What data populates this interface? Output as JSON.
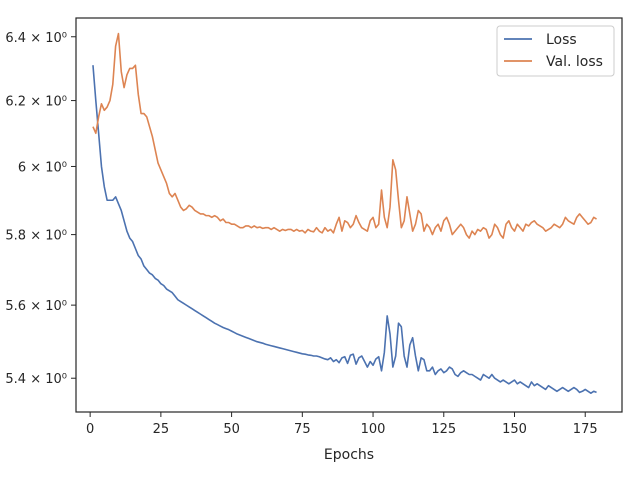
{
  "chart_data": {
    "type": "line",
    "title": "",
    "xlabel": "Epochs",
    "ylabel": "",
    "yscale": "log",
    "xlim": [
      -5,
      188
    ],
    "ylim": [
      5.31,
      6.46
    ],
    "xticks": [
      0,
      25,
      50,
      75,
      100,
      125,
      150,
      175
    ],
    "yticks": [
      5.4,
      5.6,
      5.8,
      6.0,
      6.2,
      6.4
    ],
    "ytick_labels": [
      "5.4 × 10⁰",
      "5.6 × 10⁰",
      "5.8 × 10⁰",
      "6 × 10⁰",
      "6.2 × 10⁰",
      "6.4 × 10⁰"
    ],
    "grid": false,
    "legend": "top-right",
    "x": [
      1,
      2,
      3,
      4,
      5,
      6,
      7,
      8,
      9,
      10,
      11,
      12,
      13,
      14,
      15,
      16,
      17,
      18,
      19,
      20,
      21,
      22,
      23,
      24,
      25,
      26,
      27,
      28,
      29,
      30,
      31,
      32,
      33,
      34,
      35,
      36,
      37,
      38,
      39,
      40,
      41,
      42,
      43,
      44,
      45,
      46,
      47,
      48,
      49,
      50,
      51,
      52,
      53,
      54,
      55,
      56,
      57,
      58,
      59,
      60,
      61,
      62,
      63,
      64,
      65,
      66,
      67,
      68,
      69,
      70,
      71,
      72,
      73,
      74,
      75,
      76,
      77,
      78,
      79,
      80,
      81,
      82,
      83,
      84,
      85,
      86,
      87,
      88,
      89,
      90,
      91,
      92,
      93,
      94,
      95,
      96,
      97,
      98,
      99,
      100,
      101,
      102,
      103,
      104,
      105,
      106,
      107,
      108,
      109,
      110,
      111,
      112,
      113,
      114,
      115,
      116,
      117,
      118,
      119,
      120,
      121,
      122,
      123,
      124,
      125,
      126,
      127,
      128,
      129,
      130,
      131,
      132,
      133,
      134,
      135,
      136,
      137,
      138,
      139,
      140,
      141,
      142,
      143,
      144,
      145,
      146,
      147,
      148,
      149,
      150,
      151,
      152,
      153,
      154,
      155,
      156,
      157,
      158,
      159,
      160,
      161,
      162,
      163,
      164,
      165,
      166,
      167,
      168,
      169,
      170,
      171,
      172,
      173,
      174,
      175,
      176,
      177,
      178,
      179
    ],
    "series": [
      {
        "name": "Loss",
        "color": "#4c72b0",
        "values": [
          6.31,
          6.2,
          6.1,
          6.0,
          5.94,
          5.9,
          5.9,
          5.9,
          5.91,
          5.89,
          5.87,
          5.84,
          5.81,
          5.79,
          5.78,
          5.76,
          5.74,
          5.73,
          5.71,
          5.7,
          5.69,
          5.685,
          5.675,
          5.67,
          5.66,
          5.655,
          5.645,
          5.64,
          5.635,
          5.625,
          5.615,
          5.61,
          5.605,
          5.6,
          5.595,
          5.59,
          5.585,
          5.58,
          5.575,
          5.57,
          5.565,
          5.56,
          5.555,
          5.55,
          5.546,
          5.542,
          5.538,
          5.535,
          5.532,
          5.528,
          5.524,
          5.52,
          5.517,
          5.514,
          5.511,
          5.508,
          5.505,
          5.502,
          5.499,
          5.497,
          5.495,
          5.492,
          5.49,
          5.488,
          5.486,
          5.484,
          5.482,
          5.48,
          5.478,
          5.476,
          5.474,
          5.472,
          5.47,
          5.468,
          5.466,
          5.465,
          5.463,
          5.462,
          5.46,
          5.46,
          5.458,
          5.455,
          5.452,
          5.45,
          5.455,
          5.445,
          5.45,
          5.442,
          5.455,
          5.458,
          5.44,
          5.462,
          5.465,
          5.438,
          5.455,
          5.46,
          5.445,
          5.43,
          5.445,
          5.435,
          5.452,
          5.458,
          5.42,
          5.47,
          5.57,
          5.52,
          5.43,
          5.46,
          5.55,
          5.54,
          5.46,
          5.43,
          5.49,
          5.51,
          5.46,
          5.42,
          5.455,
          5.45,
          5.42,
          5.42,
          5.43,
          5.41,
          5.42,
          5.425,
          5.415,
          5.42,
          5.43,
          5.425,
          5.41,
          5.405,
          5.415,
          5.42,
          5.415,
          5.41,
          5.41,
          5.405,
          5.4,
          5.395,
          5.41,
          5.405,
          5.4,
          5.41,
          5.4,
          5.395,
          5.39,
          5.395,
          5.39,
          5.385,
          5.39,
          5.395,
          5.385,
          5.39,
          5.385,
          5.38,
          5.375,
          5.39,
          5.38,
          5.385,
          5.38,
          5.375,
          5.37,
          5.38,
          5.375,
          5.37,
          5.365,
          5.37,
          5.375,
          5.37,
          5.365,
          5.37,
          5.375,
          5.37,
          5.362,
          5.365,
          5.37,
          5.365,
          5.36,
          5.365,
          5.362
        ]
      },
      {
        "name": "Val. loss",
        "color": "#dd8452",
        "values": [
          6.12,
          6.1,
          6.15,
          6.19,
          6.17,
          6.18,
          6.2,
          6.25,
          6.37,
          6.41,
          6.29,
          6.24,
          6.28,
          6.3,
          6.3,
          6.31,
          6.22,
          6.16,
          6.16,
          6.15,
          6.12,
          6.09,
          6.05,
          6.01,
          5.99,
          5.97,
          5.95,
          5.92,
          5.91,
          5.92,
          5.9,
          5.88,
          5.87,
          5.875,
          5.885,
          5.88,
          5.87,
          5.865,
          5.86,
          5.86,
          5.855,
          5.855,
          5.85,
          5.855,
          5.85,
          5.84,
          5.845,
          5.835,
          5.835,
          5.83,
          5.83,
          5.825,
          5.82,
          5.82,
          5.825,
          5.825,
          5.82,
          5.825,
          5.82,
          5.822,
          5.818,
          5.82,
          5.82,
          5.815,
          5.82,
          5.815,
          5.81,
          5.815,
          5.812,
          5.815,
          5.815,
          5.81,
          5.815,
          5.81,
          5.812,
          5.805,
          5.815,
          5.81,
          5.808,
          5.82,
          5.81,
          5.805,
          5.82,
          5.81,
          5.815,
          5.805,
          5.83,
          5.85,
          5.81,
          5.84,
          5.835,
          5.82,
          5.83,
          5.855,
          5.835,
          5.82,
          5.815,
          5.81,
          5.84,
          5.85,
          5.82,
          5.83,
          5.93,
          5.85,
          5.82,
          5.88,
          6.02,
          5.99,
          5.9,
          5.82,
          5.84,
          5.91,
          5.86,
          5.81,
          5.83,
          5.87,
          5.86,
          5.81,
          5.83,
          5.82,
          5.8,
          5.82,
          5.83,
          5.81,
          5.84,
          5.85,
          5.83,
          5.8,
          5.81,
          5.82,
          5.83,
          5.82,
          5.8,
          5.79,
          5.81,
          5.8,
          5.815,
          5.81,
          5.82,
          5.815,
          5.79,
          5.8,
          5.83,
          5.82,
          5.8,
          5.79,
          5.83,
          5.84,
          5.82,
          5.81,
          5.83,
          5.82,
          5.81,
          5.83,
          5.825,
          5.835,
          5.84,
          5.83,
          5.825,
          5.82,
          5.81,
          5.815,
          5.82,
          5.83,
          5.825,
          5.82,
          5.83,
          5.85,
          5.84,
          5.835,
          5.83,
          5.85,
          5.86,
          5.85,
          5.84,
          5.83,
          5.835,
          5.85,
          5.845
        ]
      }
    ]
  }
}
